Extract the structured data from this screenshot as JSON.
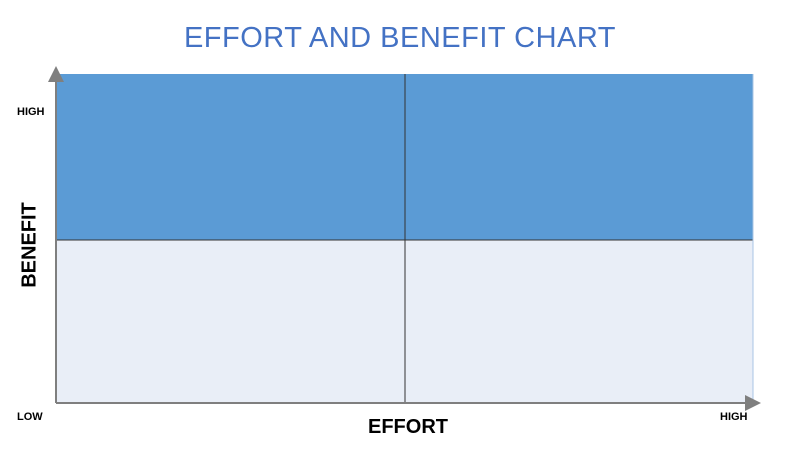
{
  "title": "EFFORT AND BENEFIT CHART",
  "axes": {
    "x_label": "EFFORT",
    "y_label": "BENEFIT",
    "y_high": "HIGH",
    "x_high": "HIGH",
    "low": "LOW"
  },
  "colors": {
    "title": "#4472C4",
    "top_quadrant_fill": "#5B9BD5",
    "bottom_quadrant_fill": "#E9EEF7",
    "divider": "#333333",
    "axis": "#7F7F7F"
  },
  "quadrants": [
    {
      "row": "top",
      "col": "left"
    },
    {
      "row": "top",
      "col": "right"
    },
    {
      "row": "bottom",
      "col": "left"
    },
    {
      "row": "bottom",
      "col": "right"
    }
  ]
}
